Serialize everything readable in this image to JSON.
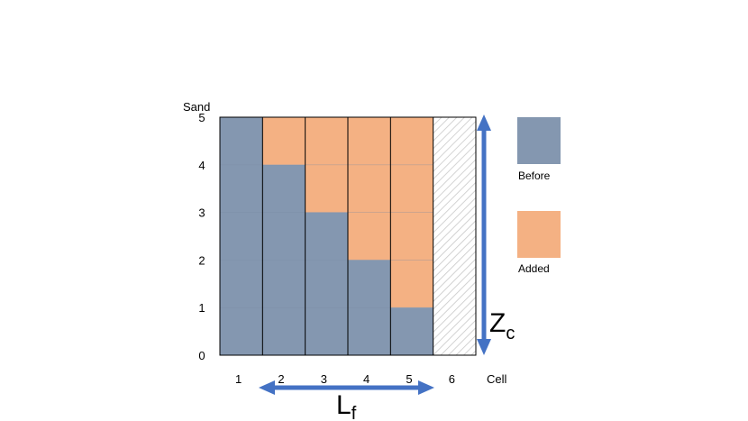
{
  "chart_data": {
    "type": "bar",
    "stacked": true,
    "xlabel": "Cell",
    "ylabel": "Sand",
    "categories": [
      "1",
      "2",
      "3",
      "4",
      "5",
      "6"
    ],
    "yticks": [
      "0",
      "1",
      "2",
      "3",
      "4",
      "5"
    ],
    "ylim": [
      0,
      5
    ],
    "series": [
      {
        "name": "Before",
        "color": "#8497b0",
        "values": [
          5,
          4,
          3,
          2,
          1,
          0
        ]
      },
      {
        "name": "Added",
        "color": "#f4b183",
        "values": [
          0,
          1,
          2,
          3,
          4,
          0
        ]
      }
    ],
    "hatched_category": "6",
    "grid": false
  },
  "legend": [
    {
      "label": "Before",
      "color": "#8497b0"
    },
    {
      "label": "Added",
      "color": "#f4b183"
    }
  ],
  "annotations": {
    "zc": {
      "main": "Z",
      "sub": "c",
      "color": "#4472c4"
    },
    "lf": {
      "main": "L",
      "sub": "f",
      "color": "#4472c4"
    }
  }
}
